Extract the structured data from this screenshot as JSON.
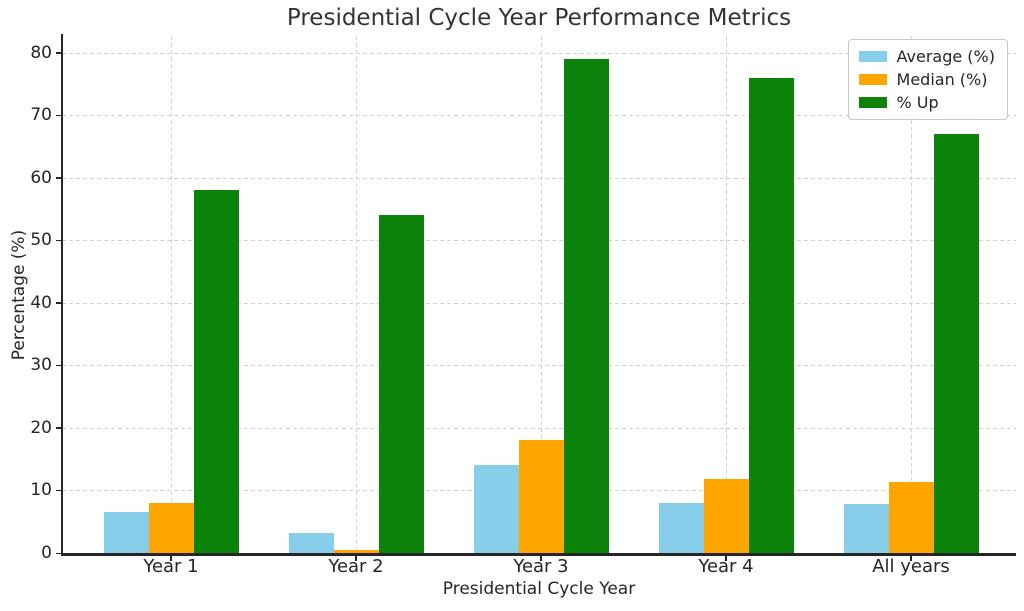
{
  "chart_data": {
    "type": "bar",
    "title": "Presidential Cycle Year Performance Metrics",
    "xlabel": "Presidential Cycle Year",
    "ylabel": "Percentage (%)",
    "categories": [
      "Year 1",
      "Year 2",
      "Year 3",
      "Year 4",
      "All years"
    ],
    "series": [
      {
        "name": "Average (%)",
        "color": "#87CEEB",
        "values": [
          6.5,
          3.2,
          14.0,
          8.0,
          7.9
        ]
      },
      {
        "name": "Median (%)",
        "color": "#FFA500",
        "values": [
          8.0,
          0.5,
          18.0,
          11.8,
          11.4
        ]
      },
      {
        "name": "% Up",
        "color": "#0B830B",
        "values": [
          58,
          54,
          79,
          76,
          67
        ]
      }
    ],
    "ylim": [
      0,
      82.7
    ],
    "yticks": [
      0,
      10,
      20,
      30,
      40,
      50,
      60,
      70,
      80
    ],
    "grid": true,
    "grid_style": "dashed",
    "legend_position": "upper right"
  }
}
